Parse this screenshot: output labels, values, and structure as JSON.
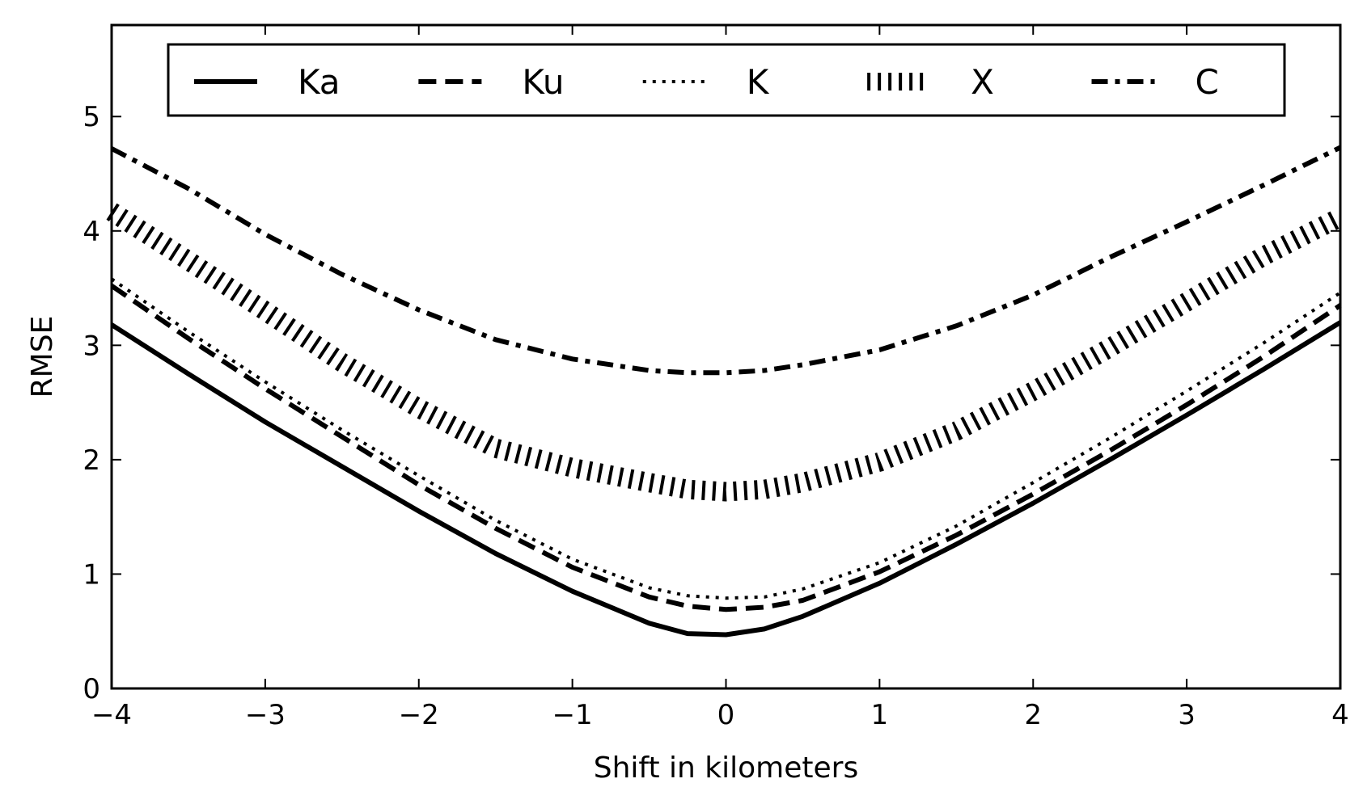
{
  "chart_data": {
    "type": "line",
    "xlabel": "Shift in kilometers",
    "ylabel": "RMSE",
    "xlim": [
      -4,
      4
    ],
    "ylim": [
      0,
      5.8
    ],
    "xticks": [
      -4,
      -3,
      -2,
      -1,
      0,
      1,
      2,
      3,
      4
    ],
    "xtick_labels": [
      "−4",
      "−3",
      "−2",
      "−1",
      "0",
      "1",
      "2",
      "3",
      "4"
    ],
    "yticks": [
      0,
      1,
      2,
      3,
      4,
      5
    ],
    "ytick_labels": [
      "0",
      "1",
      "2",
      "3",
      "4",
      "5"
    ],
    "grid": false,
    "legend_placement": "top-center",
    "line_color": "#000000",
    "x": [
      -4,
      -3.5,
      -3,
      -2.5,
      -2,
      -1.5,
      -1,
      -0.5,
      -0.25,
      0,
      0.25,
      0.5,
      1,
      1.5,
      2,
      2.5,
      3,
      3.5,
      4
    ],
    "series": [
      {
        "name": "Ka",
        "style": "solid",
        "values": [
          3.18,
          2.75,
          2.33,
          1.94,
          1.55,
          1.18,
          0.85,
          0.57,
          0.48,
          0.47,
          0.52,
          0.63,
          0.92,
          1.26,
          1.62,
          2.0,
          2.39,
          2.79,
          3.2
        ]
      },
      {
        "name": "Ku",
        "style": "dashed",
        "values": [
          3.52,
          3.06,
          2.62,
          2.2,
          1.78,
          1.4,
          1.06,
          0.8,
          0.72,
          0.69,
          0.71,
          0.77,
          1.02,
          1.34,
          1.7,
          2.08,
          2.48,
          2.9,
          3.35
        ]
      },
      {
        "name": "K",
        "style": "dotted",
        "values": [
          3.58,
          3.12,
          2.68,
          2.26,
          1.86,
          1.47,
          1.13,
          0.88,
          0.81,
          0.79,
          0.8,
          0.87,
          1.1,
          1.42,
          1.8,
          2.19,
          2.6,
          3.02,
          3.46
        ]
      },
      {
        "name": "X",
        "style": "vertical-hatch",
        "values": [
          4.17,
          3.74,
          3.3,
          2.85,
          2.45,
          2.1,
          1.93,
          1.8,
          1.74,
          1.72,
          1.74,
          1.8,
          1.98,
          2.25,
          2.6,
          2.98,
          3.38,
          3.78,
          4.12
        ]
      },
      {
        "name": "C",
        "style": "dash-dot",
        "values": [
          4.72,
          4.37,
          3.97,
          3.62,
          3.31,
          3.05,
          2.88,
          2.78,
          2.76,
          2.76,
          2.78,
          2.83,
          2.96,
          3.17,
          3.44,
          3.77,
          4.08,
          4.4,
          4.73
        ]
      }
    ]
  }
}
